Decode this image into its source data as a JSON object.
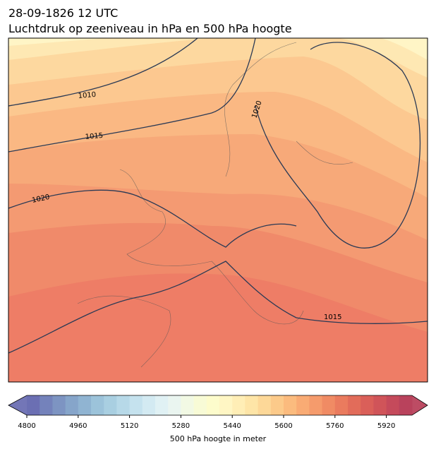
{
  "header": {
    "title": "28-09-1826 12 UTC",
    "subtitle": "Luchtdruk op zeeniveau in hPa en 500 hPa hoogte"
  },
  "isobar_labels": [
    "1010",
    "1015",
    "1020",
    "1020",
    "1015"
  ],
  "colorbar": {
    "label": "500 hPa hoogte in meter",
    "lim": [
      4800,
      6000
    ],
    "ticks": [
      4800,
      4960,
      5120,
      5280,
      5440,
      5600,
      5760,
      5920
    ],
    "colors": [
      "#6b6fb3",
      "#7482bb",
      "#7d94c2",
      "#86a5ca",
      "#90b4d2",
      "#9cc3da",
      "#a9cfe1",
      "#b7d9e8",
      "#c5e2ee",
      "#d3eaf2",
      "#e0f1f4",
      "#eaf5f0",
      "#f2f9e4",
      "#f8fbd6",
      "#fdfccc",
      "#fff6c4",
      "#ffeeb6",
      "#fee5a7",
      "#fdd898",
      "#fcca8a",
      "#fbbb7e",
      "#f9ab74",
      "#f59b6c",
      "#f08b64",
      "#ea7b5e",
      "#e26c5a",
      "#da5f59",
      "#d05459",
      "#c54a5b",
      "#b9425c"
    ]
  }
}
